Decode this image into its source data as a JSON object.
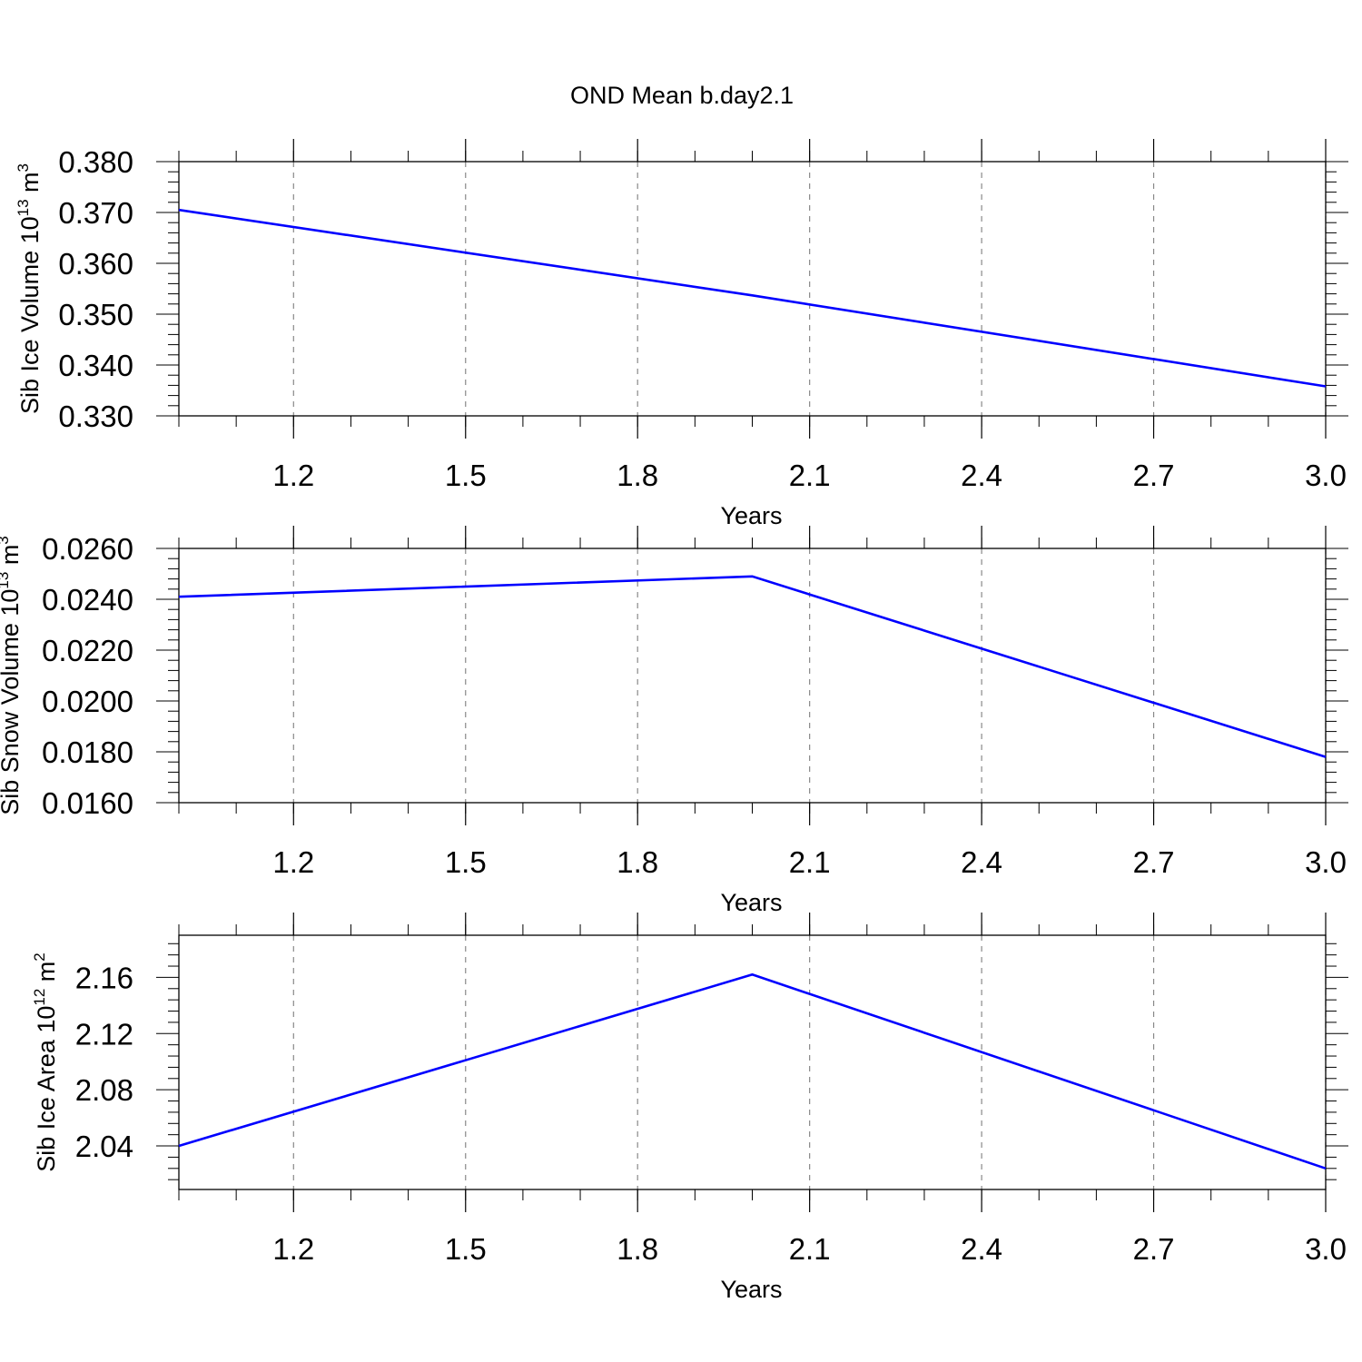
{
  "title": "OND Mean b.day2.1",
  "chart_data": [
    {
      "type": "line",
      "xlabel": "Years",
      "ylabel": {
        "text": "Sib Ice Volume 10",
        "exp": "13",
        "unit": " m",
        "unit_exp": "3"
      },
      "xlim": [
        1.0,
        3.0
      ],
      "ylim": [
        0.33,
        0.38
      ],
      "xticks": [
        "1.2",
        "1.5",
        "1.8",
        "2.1",
        "2.4",
        "2.7",
        "3.0"
      ],
      "yticks": [
        "0.330",
        "0.340",
        "0.350",
        "0.360",
        "0.370",
        "0.380"
      ],
      "grid_x": true,
      "series": [
        {
          "x": [
            1,
            2,
            3
          ],
          "y": [
            0.3705,
            0.3537,
            0.3358
          ],
          "color": "#0000ff"
        }
      ]
    },
    {
      "type": "line",
      "xlabel": "Years",
      "ylabel": {
        "text": "Sib Snow Volume 10",
        "exp": "13",
        "unit": " m",
        "unit_exp": "3"
      },
      "xlim": [
        1.0,
        3.0
      ],
      "ylim": [
        0.016,
        0.026
      ],
      "xticks": [
        "1.2",
        "1.5",
        "1.8",
        "2.1",
        "2.4",
        "2.7",
        "3.0"
      ],
      "yticks": [
        "0.0160",
        "0.0180",
        "0.0200",
        "0.0220",
        "0.0240",
        "0.0260"
      ],
      "grid_x": true,
      "series": [
        {
          "x": [
            1,
            2,
            3
          ],
          "y": [
            0.0241,
            0.0249,
            0.0178
          ],
          "color": "#0000ff"
        }
      ]
    },
    {
      "type": "line",
      "xlabel": "Years",
      "ylabel": {
        "text": "Sib Ice Area 10",
        "exp": "12",
        "unit": " m",
        "unit_exp": "2"
      },
      "xlim": [
        1.0,
        3.0
      ],
      "ylim": [
        2.009,
        2.19
      ],
      "xticks": [
        "1.2",
        "1.5",
        "1.8",
        "2.1",
        "2.4",
        "2.7",
        "3.0"
      ],
      "yticks": [
        "2.04",
        "2.08",
        "2.12",
        "2.16"
      ],
      "grid_x": true,
      "series": [
        {
          "x": [
            1,
            2,
            3
          ],
          "y": [
            2.04,
            2.162,
            2.024
          ],
          "color": "#0000ff"
        }
      ]
    }
  ]
}
